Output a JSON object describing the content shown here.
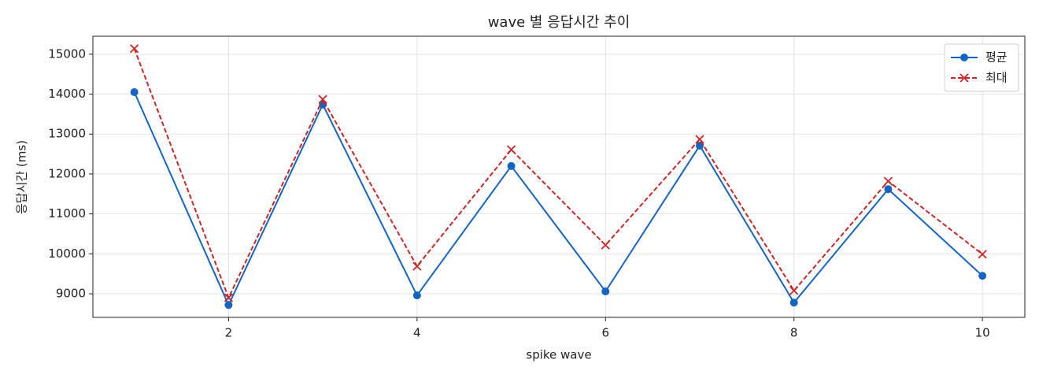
{
  "chart_data": {
    "type": "line",
    "title": "wave 별 응답시간 추이",
    "x_label": "spike wave",
    "y_label": "응답시간 (ms)",
    "x": [
      1,
      2,
      3,
      4,
      5,
      6,
      7,
      8,
      9,
      10
    ],
    "series": [
      {
        "name": "평균",
        "color": "#1565c0",
        "dash": false,
        "marker": "circle",
        "values": [
          14050,
          8720,
          13740,
          8960,
          12200,
          9060,
          12710,
          8780,
          11620,
          9450
        ]
      },
      {
        "name": "최대",
        "color": "#c62828",
        "dash": true,
        "marker": "x",
        "values": [
          15140,
          8900,
          13870,
          9690,
          12610,
          10220,
          12870,
          9080,
          11820,
          9990
        ]
      }
    ],
    "xlim": [
      0.56,
      10.45
    ],
    "ylim": [
      8410,
      15450
    ],
    "xticks": [
      2,
      4,
      6,
      8,
      10
    ],
    "yticks": [
      9000,
      10000,
      11000,
      12000,
      13000,
      14000,
      15000
    ],
    "grid": true,
    "legend": "upper right"
  }
}
